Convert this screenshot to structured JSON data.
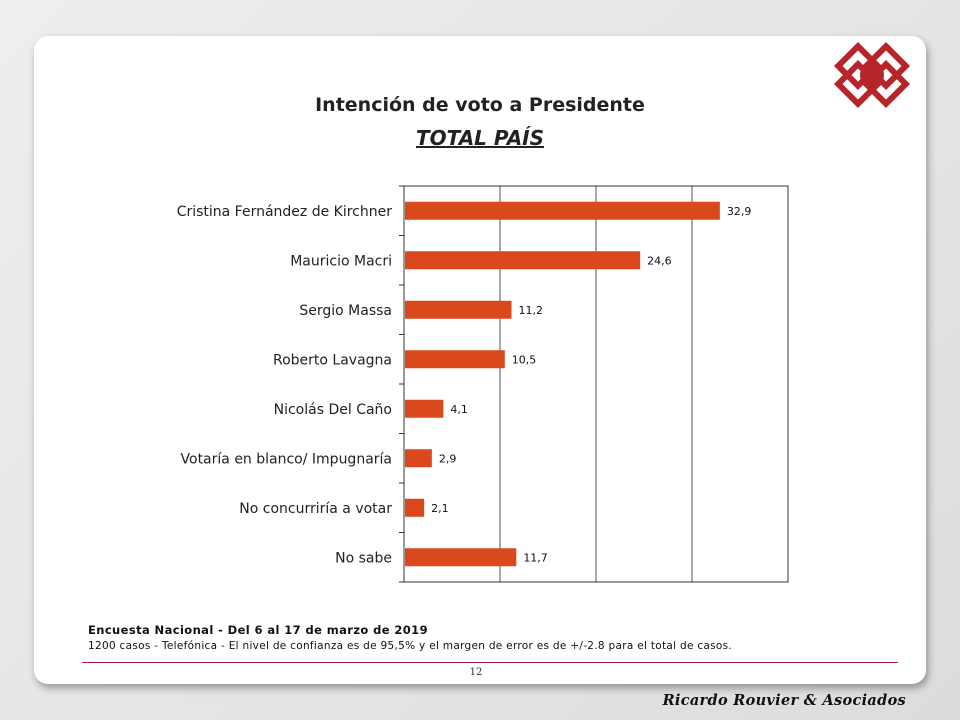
{
  "slide": {
    "title": "Intención de voto a Presidente",
    "subtitle": "TOTAL PAÍS",
    "footnote_title": "Encuesta Nacional - Del 6 al 17 de marzo de 2019",
    "footnote_body": "1200 casos - Telefónica   - El nivel de confianza es de 95,5% y el margen de error es de +/-2.8 para el total de casos.",
    "page_number": "12",
    "brand": "Ricardo Rouvier & Asociados",
    "logo_color": "#b5252a"
  },
  "chart_data": {
    "type": "bar",
    "orientation": "horizontal",
    "title": "Intención de voto a Presidente",
    "subtitle": "TOTAL PAÍS",
    "categories": [
      "Cristina Fernández de Kirchner",
      "Mauricio Macri",
      "Sergio Massa",
      "Roberto Lavagna",
      "Nicolás Del Caño",
      "Votaría en blanco/ Impugnaría",
      "No concurriría a votar",
      "No sabe"
    ],
    "values": [
      32.9,
      24.6,
      11.2,
      10.5,
      4.1,
      2.9,
      2.1,
      11.7
    ],
    "value_labels": [
      "32,9",
      "24,6",
      "11,2",
      "10,5",
      "4,1",
      "2,9",
      "2,1",
      "11,7"
    ],
    "xlim": [
      0,
      40
    ],
    "xgrid": [
      10,
      20,
      30
    ],
    "bar_color": "#d9491b",
    "xlabel": "",
    "ylabel": "",
    "grid": true,
    "legend": "none"
  }
}
